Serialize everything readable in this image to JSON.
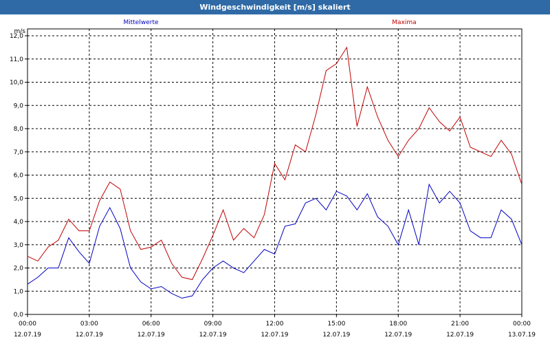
{
  "window": {
    "title": "Windgeschwindigkeit [m/s] skaliert"
  },
  "chart_data": {
    "type": "line",
    "title": "Windgeschwindigkeit [m/s] skaliert",
    "xlabel": "",
    "ylabel": "m/s",
    "ylim": [
      0,
      12
    ],
    "xlim": [
      0,
      24
    ],
    "grid": true,
    "y_ticks": [
      "0,0",
      "1,0",
      "2,0",
      "3,0",
      "4,0",
      "5,0",
      "6,0",
      "7,0",
      "8,0",
      "9,0",
      "10,0",
      "11,0",
      "12,0"
    ],
    "x_ticks": [
      {
        "time": "00:00",
        "date": "12.07.19"
      },
      {
        "time": "03:00",
        "date": "12.07.19"
      },
      {
        "time": "06:00",
        "date": "12.07.19"
      },
      {
        "time": "09:00",
        "date": "12.07.19"
      },
      {
        "time": "12:00",
        "date": "12.07.19"
      },
      {
        "time": "15:00",
        "date": "12.07.19"
      },
      {
        "time": "18:00",
        "date": "12.07.19"
      },
      {
        "time": "21:00",
        "date": "12.07.19"
      },
      {
        "time": "00:00",
        "date": "13.07.19"
      }
    ],
    "series": [
      {
        "name": "Mittelwerte",
        "color": "#0000c0",
        "x": [
          0,
          0.5,
          1,
          1.5,
          2,
          2.5,
          3,
          3.5,
          4,
          4.5,
          5,
          5.5,
          6,
          6.5,
          7,
          7.5,
          8,
          8.5,
          9,
          9.5,
          10,
          10.5,
          11,
          11.5,
          12,
          12.5,
          13,
          13.5,
          14,
          14.5,
          15,
          15.5,
          16,
          16.5,
          17,
          17.5,
          18,
          18.5,
          19,
          19.5,
          20,
          20.5,
          21,
          21.5,
          22,
          22.5,
          23,
          23.5,
          24
        ],
        "values": [
          1.3,
          1.6,
          2.0,
          2.0,
          3.3,
          2.7,
          2.2,
          3.8,
          4.6,
          3.7,
          2.0,
          1.4,
          1.1,
          1.2,
          0.9,
          0.7,
          0.8,
          1.5,
          2.0,
          2.3,
          2.0,
          1.8,
          2.3,
          2.8,
          2.6,
          3.8,
          3.9,
          4.8,
          5.0,
          4.5,
          5.3,
          5.1,
          4.5,
          5.2,
          4.2,
          3.8,
          3.0,
          4.5,
          3.0,
          5.6,
          4.8,
          5.3,
          4.8,
          3.6,
          3.3,
          3.3,
          4.5,
          4.1,
          3.0
        ]
      },
      {
        "name": "Maxima",
        "color": "#c00000",
        "x": [
          0,
          0.5,
          1,
          1.5,
          2,
          2.5,
          3,
          3.5,
          4,
          4.5,
          5,
          5.5,
          6,
          6.5,
          7,
          7.5,
          8,
          8.5,
          9,
          9.5,
          10,
          10.5,
          11,
          11.5,
          12,
          12.5,
          13,
          13.5,
          14,
          14.5,
          15,
          15.5,
          16,
          16.5,
          17,
          17.5,
          18,
          18.5,
          19,
          19.5,
          20,
          20.5,
          21,
          21.5,
          22,
          22.5,
          23,
          23.5,
          24
        ],
        "values": [
          2.5,
          2.3,
          2.9,
          3.2,
          4.1,
          3.6,
          3.6,
          4.9,
          5.7,
          5.4,
          3.6,
          2.8,
          2.9,
          3.2,
          2.2,
          1.6,
          1.5,
          2.4,
          3.4,
          4.5,
          3.2,
          3.7,
          3.3,
          4.3,
          6.5,
          5.8,
          7.3,
          7.0,
          8.6,
          10.5,
          10.8,
          11.5,
          8.1,
          9.8,
          8.5,
          7.5,
          6.8,
          7.5,
          8.0,
          8.9,
          8.3,
          7.9,
          8.5,
          7.2,
          7.0,
          6.8,
          7.5,
          6.9,
          5.6
        ]
      }
    ]
  }
}
